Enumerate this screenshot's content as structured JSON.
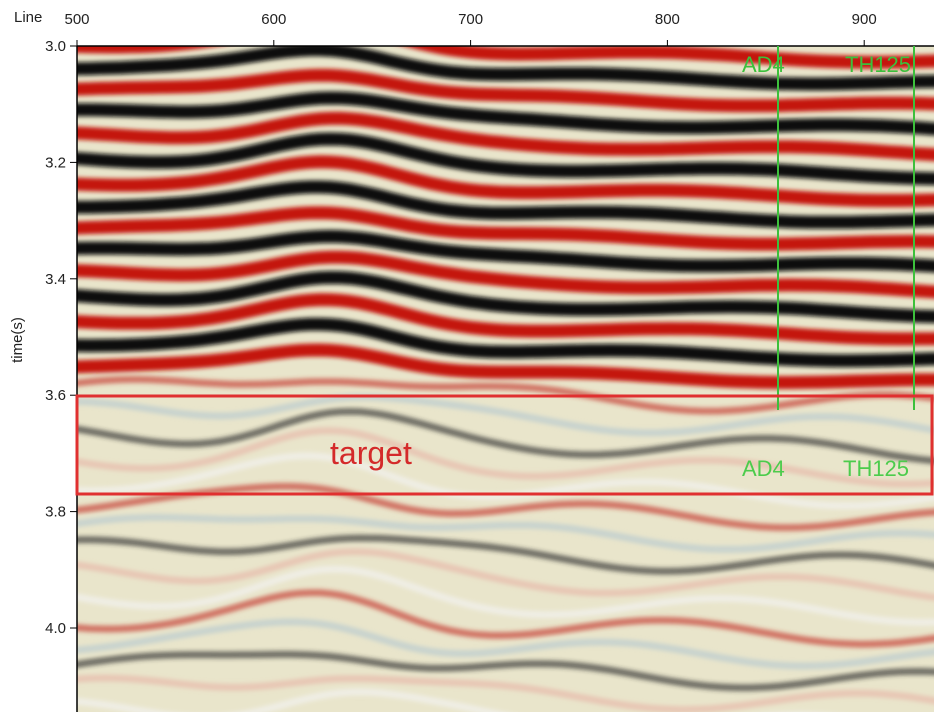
{
  "x_axis": {
    "label": "Line",
    "ticks": [
      500,
      600,
      700,
      800,
      900
    ]
  },
  "y_axis": {
    "label": "time(s)",
    "ticks": [
      "3.0",
      "3.2",
      "3.4",
      "3.6",
      "3.8",
      "4.0"
    ]
  },
  "wells": [
    {
      "top_label": "AD4",
      "bottom_label": "AD4"
    },
    {
      "top_label": "TH125",
      "bottom_label": "TH125"
    }
  ],
  "annotation": "target"
}
